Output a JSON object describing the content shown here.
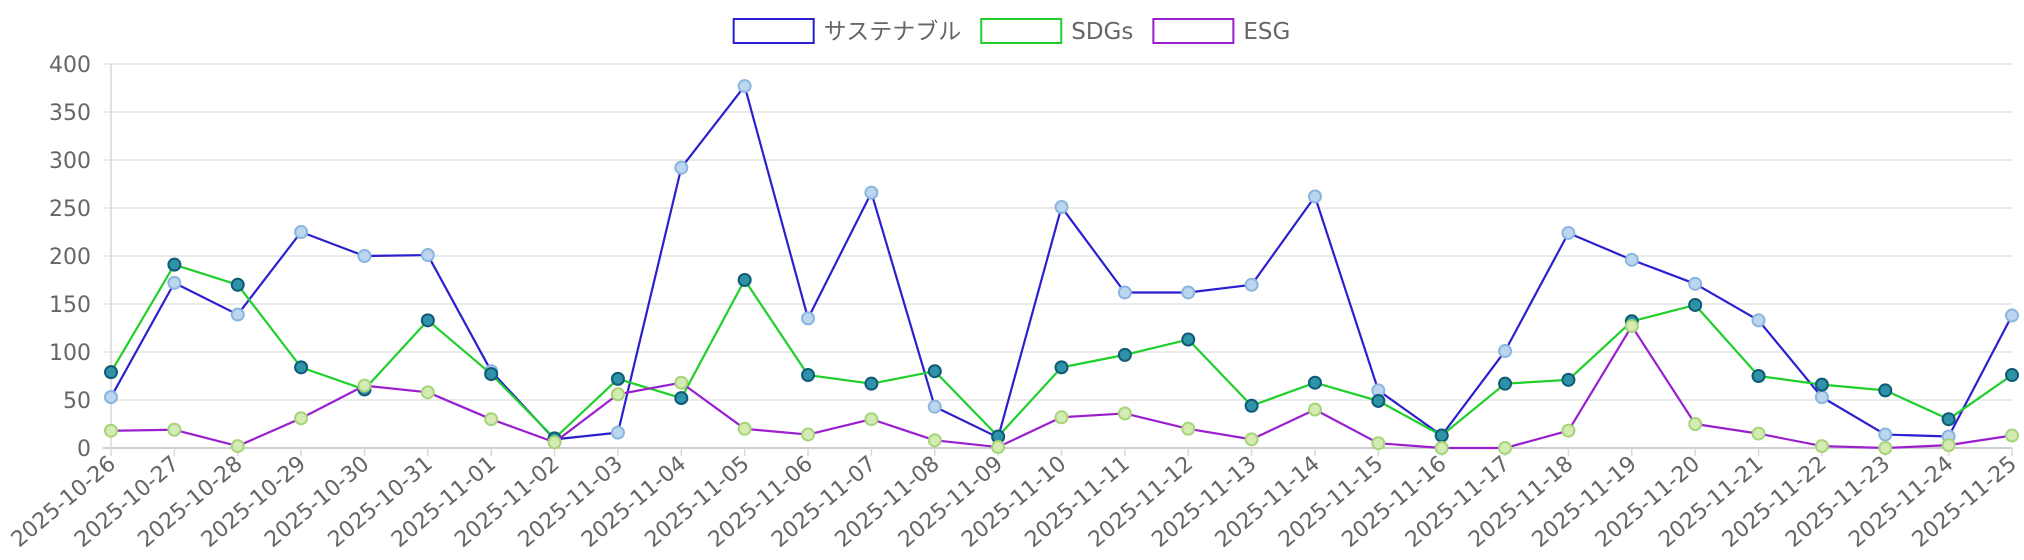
{
  "chart_data": {
    "type": "line",
    "legend_position": "top",
    "grid": true,
    "ylim": [
      0,
      400
    ],
    "y_ticks": [
      0,
      50,
      100,
      150,
      200,
      250,
      300,
      350,
      400
    ],
    "categories": [
      "2025-10-26",
      "2025-10-27",
      "2025-10-28",
      "2025-10-29",
      "2025-10-30",
      "2025-10-31",
      "2025-11-01",
      "2025-11-02",
      "2025-11-03",
      "2025-11-04",
      "2025-11-05",
      "2025-11-06",
      "2025-11-07",
      "2025-11-08",
      "2025-11-09",
      "2025-11-10",
      "2025-11-11",
      "2025-11-12",
      "2025-11-13",
      "2025-11-14",
      "2025-11-15",
      "2025-11-16",
      "2025-11-17",
      "2025-11-18",
      "2025-11-19",
      "2025-11-20",
      "2025-11-21",
      "2025-11-22",
      "2025-11-23",
      "2025-11-24",
      "2025-11-25"
    ],
    "series": [
      {
        "name": "サステナブル",
        "color": "#2b1fcf",
        "point_fill": "#bcd6ef",
        "point_stroke": "#8ab6e0",
        "values": [
          53,
          172,
          139,
          225,
          200,
          201,
          80,
          9,
          16,
          292,
          377,
          135,
          266,
          43,
          11,
          251,
          162,
          162,
          170,
          262,
          60,
          13,
          101,
          224,
          196,
          171,
          133,
          53,
          14,
          12,
          138
        ]
      },
      {
        "name": "SDGs",
        "color": "#1fcf2b",
        "point_fill": "#2e93a8",
        "point_stroke": "#0f5a74",
        "values": [
          79,
          191,
          170,
          84,
          61,
          133,
          77,
          10,
          72,
          52,
          175,
          76,
          67,
          80,
          12,
          84,
          97,
          113,
          44,
          68,
          49,
          13,
          67,
          71,
          132,
          149,
          75,
          66,
          60,
          30,
          76
        ]
      },
      {
        "name": "ESG",
        "color": "#9a1fcf",
        "point_fill": "#d4ebb4",
        "point_stroke": "#a6d479",
        "values": [
          18,
          19,
          2,
          31,
          65,
          58,
          30,
          6,
          56,
          68,
          20,
          14,
          30,
          8,
          1,
          32,
          36,
          20,
          9,
          40,
          5,
          0,
          0,
          18,
          127,
          25,
          15,
          2,
          0,
          3,
          13
        ]
      }
    ]
  }
}
